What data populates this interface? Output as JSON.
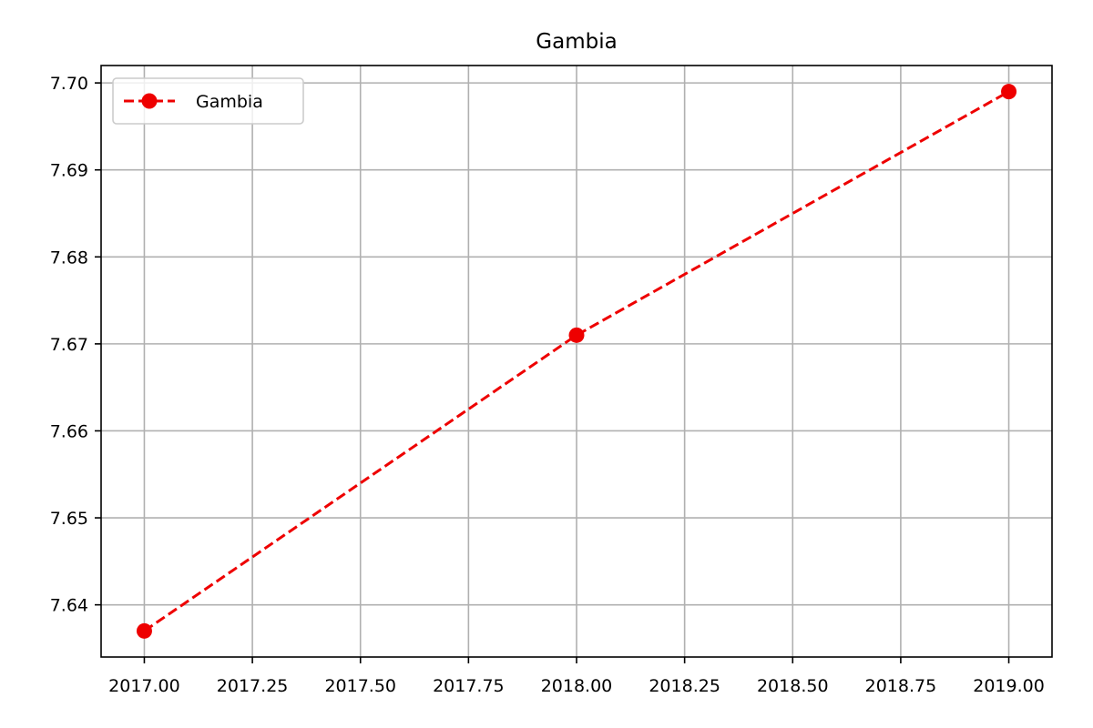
{
  "chart_data": {
    "type": "line",
    "title": "Gambia",
    "xlabel": "",
    "ylabel": "",
    "xlim": [
      2016.9,
      2019.1
    ],
    "ylim": [
      7.634,
      7.702
    ],
    "x_ticks": [
      2017.0,
      2017.25,
      2017.5,
      2017.75,
      2018.0,
      2018.25,
      2018.5,
      2018.75,
      2019.0
    ],
    "x_tick_labels": [
      "2017.00",
      "2017.25",
      "2017.50",
      "2017.75",
      "2018.00",
      "2018.25",
      "2018.50",
      "2018.75",
      "2019.00"
    ],
    "y_ticks": [
      7.64,
      7.65,
      7.66,
      7.67,
      7.68,
      7.69,
      7.7
    ],
    "y_tick_labels": [
      "7.64",
      "7.65",
      "7.66",
      "7.67",
      "7.68",
      "7.69",
      "7.70"
    ],
    "grid": true,
    "legend_position": "top-left",
    "series": [
      {
        "name": "Gambia",
        "x": [
          2017,
          2018,
          2019
        ],
        "y": [
          7.637,
          7.671,
          7.699
        ],
        "color": "#ee0000",
        "line_style": "dashed",
        "marker": "circle"
      }
    ]
  }
}
